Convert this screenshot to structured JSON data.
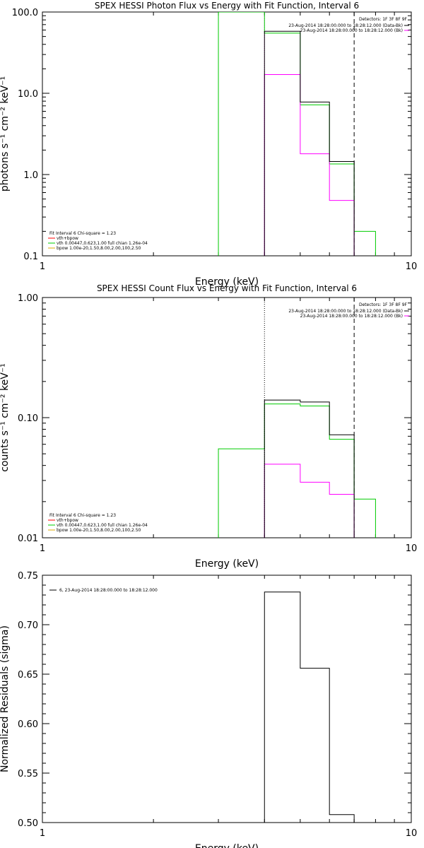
{
  "colors": {
    "total": "#000000",
    "vth": "#00cc00",
    "bpow": "#ff00ff",
    "background": "#ffffff",
    "line": "#000000",
    "legend_red": "#ff0000",
    "legend_gold": "#ddaa00"
  },
  "chart_data": [
    {
      "type": "line",
      "title": "SPEX HESSI Photon Flux vs Energy with Fit Function, Interval 6",
      "xlabel": "Energy (keV)",
      "ylabel": "photons s⁻¹ cm⁻² keV⁻¹",
      "xscale": "log",
      "yscale": "log",
      "xlim": [
        1,
        10
      ],
      "ylim": [
        0.1,
        100
      ],
      "xticks": [
        "1",
        "10"
      ],
      "yticks": [
        "100.0",
        "10.0",
        "1.0",
        "0.1"
      ],
      "detectors_text": "Detectors: 1F 3F 8F 9F",
      "time_legend": [
        "23-Aug-2014 18:28:00.000 to 18:28:12.000 (Data-Bk)",
        "23-Aug-2014 18:28:00.000 to 18:28:12.000 (Bk)"
      ],
      "fit_legend": [
        "Fit Interval 6   Chi-square = 1.23",
        "vth+bpow",
        "vth 0.00447,0.623,1.00  full chian 1.26e-04",
        "bpow 1.00e-20,1.50,8.00,2.00,100,2.50"
      ],
      "edges": [
        3,
        4,
        5,
        6,
        7,
        8
      ],
      "series": [
        {
          "name": "vth",
          "color_key": "vth",
          "values": [
            100,
            55,
            7.2,
            1.35,
            0.2
          ]
        },
        {
          "name": "bpow",
          "color_key": "bpow",
          "values": [
            null,
            17,
            1.8,
            0.48,
            null
          ]
        },
        {
          "name": "vth+bpow",
          "color_key": "total",
          "values": [
            null,
            58,
            7.8,
            1.45,
            null
          ]
        }
      ],
      "vlines": [
        {
          "x": 4,
          "style": "dotted",
          "color_key": "bpow"
        },
        {
          "x": 7,
          "style": "dashed",
          "color_key": "line"
        }
      ]
    },
    {
      "type": "line",
      "title": "SPEX HESSI Count Flux vs Energy with Fit Function, Interval 6",
      "xlabel": "Energy (keV)",
      "ylabel": "counts s⁻¹ cm⁻² keV⁻¹",
      "xscale": "log",
      "yscale": "log",
      "xlim": [
        1,
        10
      ],
      "ylim": [
        0.01,
        1.0
      ],
      "xticks": [
        "1",
        "10"
      ],
      "yticks": [
        "1.00",
        "0.10",
        "0.01"
      ],
      "detectors_text": "Detectors: 1F 3F 8F 9F",
      "time_legend": [
        "23-Aug-2014 18:28:00.000 to 18:28:12.000 (Data-Bk)",
        "23-Aug-2014 18:28:00.000 to 18:28:12.000 (Bk)"
      ],
      "fit_legend": [
        "Fit Interval 6   Chi-square = 1.23",
        "vth+bpow",
        "vth 0.00447,0.623,1.00  full chian 1.26e-04",
        "bpow 1.00e-20,1.50,8.00,2.00,100,2.50"
      ],
      "edges": [
        3,
        4,
        5,
        6,
        7,
        8
      ],
      "series": [
        {
          "name": "vth",
          "color_key": "vth",
          "values": [
            0.055,
            0.13,
            0.125,
            0.066,
            0.021
          ]
        },
        {
          "name": "bpow",
          "color_key": "bpow",
          "values": [
            null,
            0.041,
            0.029,
            0.023,
            null
          ]
        },
        {
          "name": "vth+bpow",
          "color_key": "total",
          "values": [
            null,
            0.14,
            0.135,
            0.072,
            null
          ]
        }
      ],
      "vlines": [
        {
          "x": 4,
          "style": "dotted",
          "color_key": "line"
        },
        {
          "x": 7,
          "style": "dashed",
          "color_key": "line"
        }
      ]
    },
    {
      "type": "line",
      "title": "",
      "xlabel": "Energy (keV)",
      "ylabel": "Normalized Residuals (sigma)",
      "xscale": "log",
      "yscale": "linear",
      "xlim": [
        1,
        10
      ],
      "ylim": [
        0.5,
        0.75
      ],
      "xticks": [
        "1",
        "10"
      ],
      "yticks": [
        "0.75",
        "0.70",
        "0.65",
        "0.60",
        "0.55",
        "0.50"
      ],
      "legend": "6, 23-Aug-2014 18:28:00.000 to 18:28:12.000",
      "edges": [
        4,
        5,
        6,
        7
      ],
      "values": [
        0.733,
        0.656,
        0.508
      ]
    }
  ]
}
